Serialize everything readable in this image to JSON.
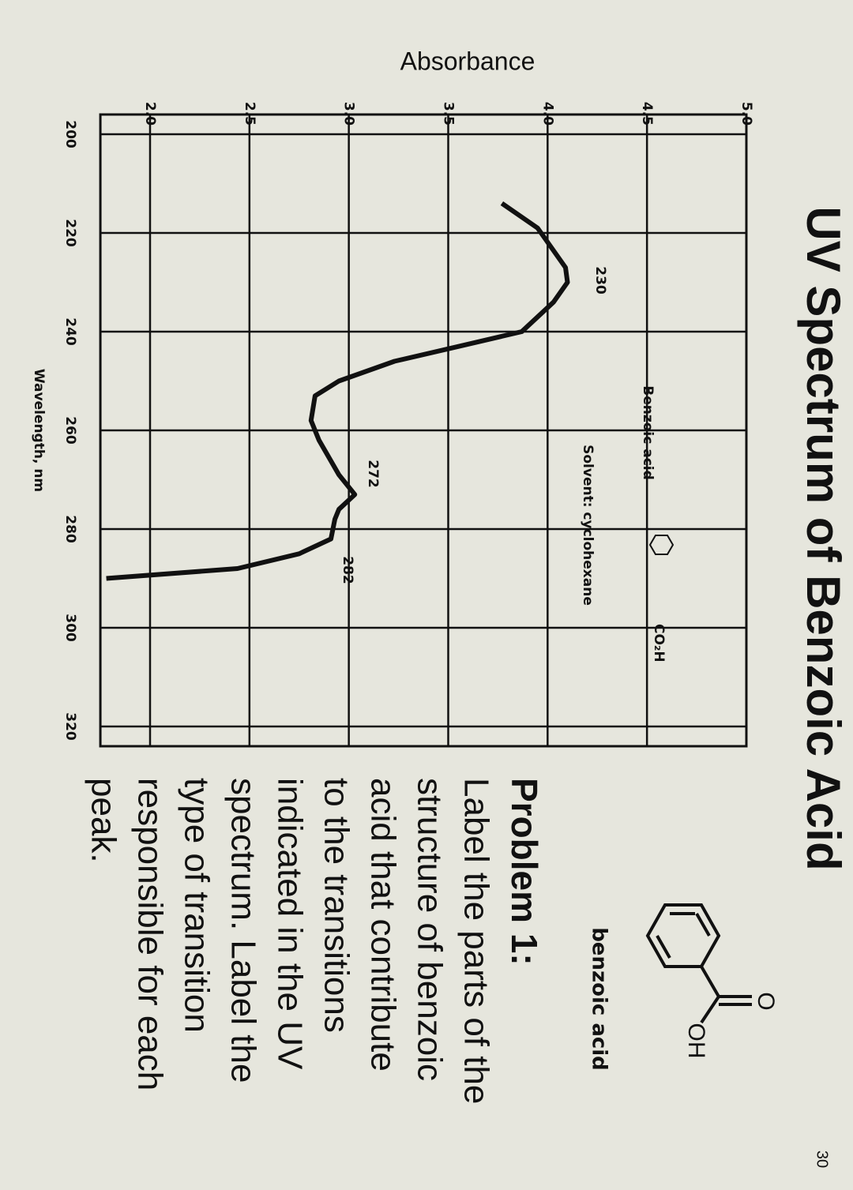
{
  "slide": {
    "title": "UV Spectrum of Benzoic Acid",
    "page_number": "30"
  },
  "chart_data": {
    "type": "line",
    "y_label": "Absorbance",
    "x_label": "Wavelength, nm",
    "x": [
      214,
      219,
      227,
      230,
      234,
      240,
      243,
      246,
      250,
      253,
      258,
      262,
      269,
      273,
      276,
      278,
      282,
      285,
      288,
      290
    ],
    "values": [
      3.77,
      3.95,
      4.09,
      4.1,
      4.03,
      3.87,
      3.55,
      3.23,
      2.95,
      2.83,
      2.81,
      2.85,
      2.95,
      3.03,
      2.95,
      2.93,
      2.91,
      2.75,
      2.44,
      1.78
    ],
    "color": "#111111",
    "xlim": [
      196,
      324
    ],
    "xticks": [
      200,
      220,
      240,
      260,
      280,
      300,
      320
    ],
    "ylim": [
      1.75,
      5.0
    ],
    "yticks": [
      {
        "value": 2,
        "label": "2.0"
      },
      2.5,
      {
        "value": 3,
        "label": "3.0"
      },
      3.5,
      {
        "value": 4,
        "label": "4.0"
      },
      4.5,
      {
        "value": 5,
        "label": "5.0"
      }
    ],
    "grid": true,
    "annotations": [
      "230",
      "272",
      "282",
      "Benzoic acid",
      "Solvent: cyclohexane",
      "CO₂H"
    ]
  },
  "structure": {
    "label": "benzoic acid",
    "atoms": [
      "O",
      "OH"
    ]
  },
  "problem": {
    "heading": "Problem 1:",
    "lines": [
      "Label the parts of the",
      "structure of benzoic",
      "acid that contribute",
      "to the transitions",
      "indicated in the UV",
      "spectrum. Label the",
      "type of transition",
      "responsible for each",
      "peak."
    ]
  }
}
